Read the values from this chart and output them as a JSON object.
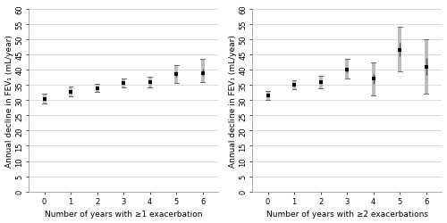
{
  "left": {
    "x": [
      0,
      1,
      2,
      3,
      4,
      5,
      6
    ],
    "mean": [
      30.5,
      32.8,
      34.0,
      35.7,
      36.0,
      38.5,
      39.0
    ],
    "ci_lower": [
      29.0,
      31.2,
      32.7,
      34.2,
      34.3,
      35.5,
      36.0
    ],
    "ci_upper": [
      32.0,
      34.4,
      35.3,
      37.2,
      37.7,
      41.5,
      43.5
    ],
    "xlabel": "Number of years with ≥1 exacerbation",
    "ylabel": "Annual decline in FEV₁ (mL/year)"
  },
  "right": {
    "x": [
      0,
      1,
      2,
      3,
      4,
      5,
      6
    ],
    "mean": [
      31.5,
      35.0,
      36.0,
      40.0,
      37.0,
      46.5,
      41.0
    ],
    "ci_lower": [
      30.0,
      33.5,
      34.0,
      37.0,
      31.5,
      39.5,
      32.0
    ],
    "ci_upper": [
      33.0,
      36.5,
      38.0,
      43.5,
      42.5,
      54.0,
      50.0
    ],
    "xlabel": "Number of years with ≥2 exacerbations",
    "ylabel": "Annual decline in FEV₁ (mL/year)"
  },
  "ylim": [
    0,
    60
  ],
  "yticks": [
    0,
    5,
    10,
    15,
    20,
    25,
    30,
    35,
    40,
    45,
    50,
    55,
    60
  ],
  "xticks": [
    0,
    1,
    2,
    3,
    4,
    5,
    6
  ],
  "marker_color": "#000000",
  "ci_dark_color": "#555555",
  "ci_light_color": "#bbbbbb",
  "background_color": "#ffffff",
  "grid_color": "#cccccc",
  "marker_size": 3.5,
  "xlabel_fontsize": 6.5,
  "ylabel_fontsize": 6.5,
  "tick_fontsize": 6.0
}
